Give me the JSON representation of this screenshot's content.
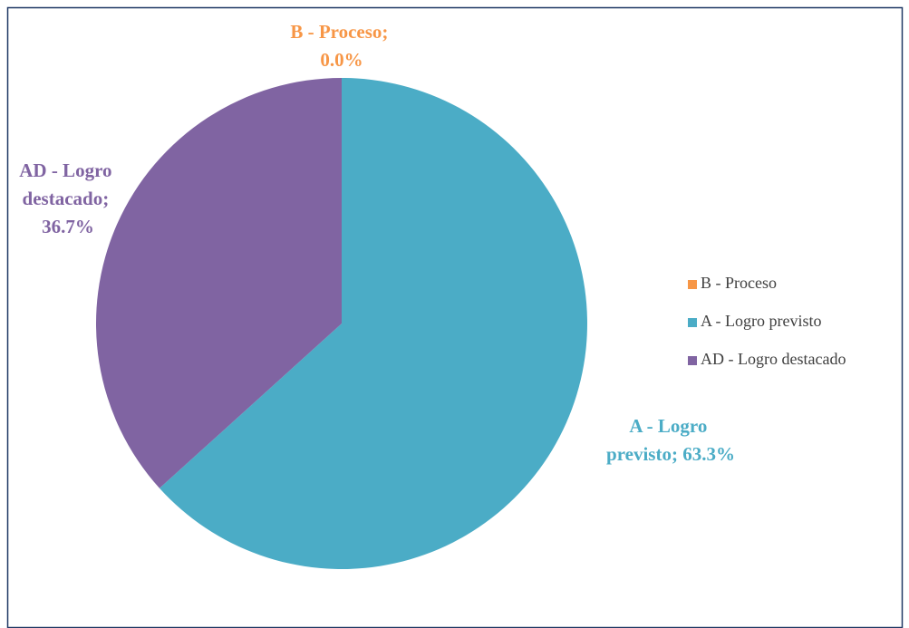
{
  "chart_data": {
    "type": "pie",
    "categories": [
      "B - Proceso",
      "A - Logro previsto",
      "AD - Logro destacado"
    ],
    "values": [
      0,
      63.3,
      36.7
    ],
    "value_labels": [
      "B - Proceso; 0.0%",
      "A - Logro previsto; 63.3%",
      "AD - Logro destacado; 36.7%"
    ],
    "colors": [
      "#f79646",
      "#4bacc6",
      "#8064a2"
    ],
    "legend": "right"
  }
}
